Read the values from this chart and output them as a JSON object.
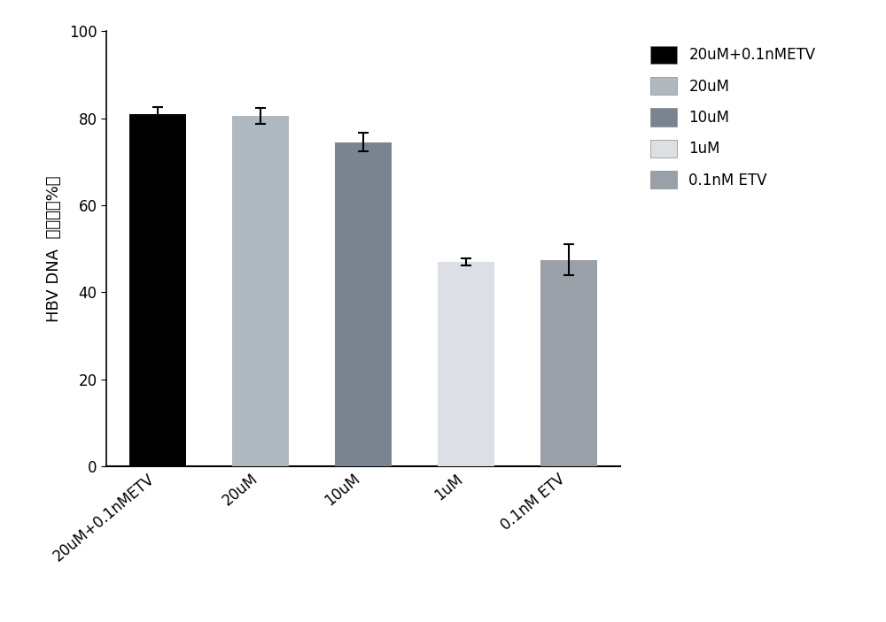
{
  "categories": [
    "20uM+0.1nMETV",
    "20uM",
    "10uM",
    "1uM",
    "0.1nM ETV"
  ],
  "values": [
    81.0,
    80.5,
    74.5,
    47.0,
    47.5
  ],
  "errors": [
    1.5,
    1.8,
    2.2,
    0.8,
    3.5
  ],
  "bar_colors": [
    "#000000",
    "#b0b8c0",
    "#7a8490",
    "#dcdfe3",
    "#9aa0a8"
  ],
  "legend_labels": [
    "20uM+0.1nMETV",
    "20uM",
    "10uM",
    "1uM",
    "0.1nM ETV"
  ],
  "legend_colors": [
    "#000000",
    "#b0b8c0",
    "#7a8490",
    "#dcdfe3",
    "#9aa0a8"
  ],
  "ylabel_top": "HBV DNA",
  "ylabel_bottom": "抑制率（%）",
  "ylim": [
    0,
    100
  ],
  "yticks": [
    0,
    20,
    40,
    60,
    80,
    100
  ],
  "background_color": "#ffffff",
  "bar_width": 0.55,
  "tick_label_rotation": 40,
  "legend_fontsize": 12,
  "axis_fontsize": 13,
  "tick_fontsize": 12
}
